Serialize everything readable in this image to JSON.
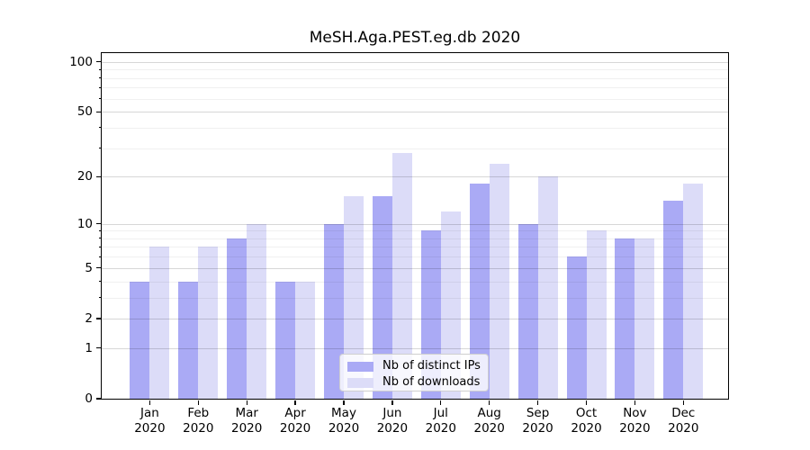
{
  "chart_data": {
    "type": "bar",
    "title": "MeSH.Aga.PEST.eg.db 2020",
    "categories": [
      "Jan 2020",
      "Feb 2020",
      "Mar 2020",
      "Apr 2020",
      "May 2020",
      "Jun 2020",
      "Jul 2020",
      "Aug 2020",
      "Sep 2020",
      "Oct 2020",
      "Nov 2020",
      "Dec 2020"
    ],
    "series": [
      {
        "name": "Nb of distinct IPs",
        "color": "#aaaaf5",
        "values": [
          4,
          4,
          8,
          4,
          10,
          15,
          9,
          18,
          10,
          6,
          8,
          14
        ]
      },
      {
        "name": "Nb of downloads",
        "color": "#dcdcf8",
        "values": [
          7,
          7,
          10,
          4,
          15,
          28,
          12,
          24,
          20,
          9,
          8,
          18
        ]
      }
    ],
    "yscale": "log1p",
    "ylim": [
      0,
      113
    ],
    "y_major_ticks": [
      100,
      50,
      20,
      10,
      5,
      2,
      1,
      0
    ],
    "y_minor_ticks": [
      90,
      80,
      70,
      60,
      40,
      30,
      9,
      8,
      7,
      6,
      4,
      3
    ],
    "grid": "on",
    "legend_position": "inside-bottom-center"
  }
}
